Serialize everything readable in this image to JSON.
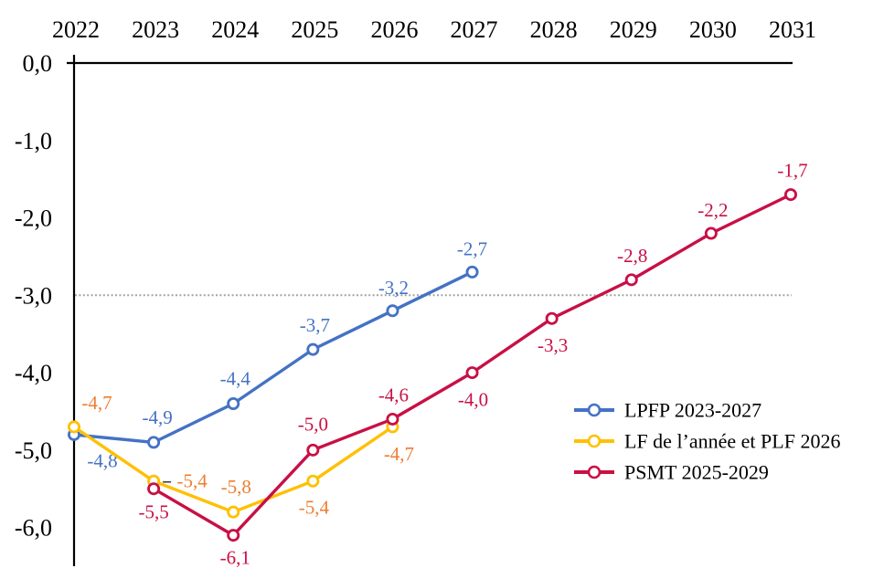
{
  "chart_data": {
    "type": "line",
    "title": "",
    "xlabel": "",
    "ylabel": "",
    "x_categories": [
      "2022",
      "2023",
      "2024",
      "2025",
      "2026",
      "2027",
      "2028",
      "2029",
      "2030",
      "2031"
    ],
    "ylim": [
      -6.5,
      0
    ],
    "yticks": [
      {
        "value": 0,
        "label": "0,0"
      },
      {
        "value": -1,
        "label": "-1,0"
      },
      {
        "value": -2,
        "label": "-2,0"
      },
      {
        "value": -3,
        "label": "-3,0"
      },
      {
        "value": -4,
        "label": "-4,0"
      },
      {
        "value": -5,
        "label": "-5,0"
      },
      {
        "value": -6,
        "label": "-6,0"
      }
    ],
    "grid": "off",
    "x_axis_position": "top",
    "refline": {
      "value": -3.0,
      "color": "#A3A3A3",
      "style": "dotted"
    },
    "axis_color": "#000000",
    "marker": "open-circle",
    "legend_position": "middle-right",
    "series": [
      {
        "name": "LPFP 2023-2027",
        "color": "#4472C4",
        "label_color": "#4472C4",
        "years": [
          2022,
          2023,
          2024,
          2025,
          2026,
          2027
        ],
        "values": [
          -4.8,
          -4.9,
          -4.4,
          -3.7,
          -3.2,
          -2.7
        ],
        "labels": [
          "-4,8",
          "-4,9",
          "-4,4",
          "-3,7",
          "-3,2",
          "-2,7"
        ],
        "label_offsets": [
          [
            31,
            28
          ],
          [
            4,
            -28
          ],
          [
            2,
            -28
          ],
          [
            2,
            -27
          ],
          [
            1,
            -26
          ],
          [
            0,
            -26
          ]
        ],
        "label_leaders": [
          false,
          false,
          false,
          false,
          false,
          false
        ]
      },
      {
        "name": "LF de l’année et PLF 2026",
        "color": "#FFC000",
        "label_color": "#ED7D31",
        "years": [
          2022,
          2023,
          2024,
          2025,
          2026
        ],
        "values": [
          -4.7,
          -5.4,
          -5.8,
          -5.4,
          -4.7
        ],
        "labels": [
          "-4,7",
          "-5,4",
          "-5,8",
          "-5,4",
          "-4,7"
        ],
        "label_offsets": [
          [
            25,
            -27
          ],
          [
            42,
            -1
          ],
          [
            3,
            -28
          ],
          [
            1,
            28
          ],
          [
            7,
            29
          ]
        ],
        "label_leaders": [
          false,
          true,
          false,
          false,
          false
        ]
      },
      {
        "name": "PSMT 2025-2029",
        "color": "#C81045",
        "label_color": "#C81045",
        "years": [
          2023,
          2024,
          2025,
          2026,
          2027,
          2028,
          2029,
          2030,
          2031
        ],
        "values": [
          -5.5,
          -6.1,
          -5.0,
          -4.6,
          -4.0,
          -3.3,
          -2.8,
          -2.2,
          -1.7
        ],
        "labels": [
          "-5,5",
          "-6,1",
          "-5,0",
          "-4,6",
          "-4,0",
          "-3,3",
          "-2,8",
          "-2,2",
          "-1,7"
        ],
        "label_offsets": [
          [
            0,
            25
          ],
          [
            2,
            24
          ],
          [
            0,
            -29
          ],
          [
            1,
            -27
          ],
          [
            1,
            29
          ],
          [
            1,
            29
          ],
          [
            1,
            -27
          ],
          [
            2,
            -26
          ],
          [
            2,
            -27
          ]
        ],
        "label_leaders": [
          false,
          false,
          false,
          false,
          false,
          false,
          false,
          false,
          false
        ]
      }
    ]
  }
}
